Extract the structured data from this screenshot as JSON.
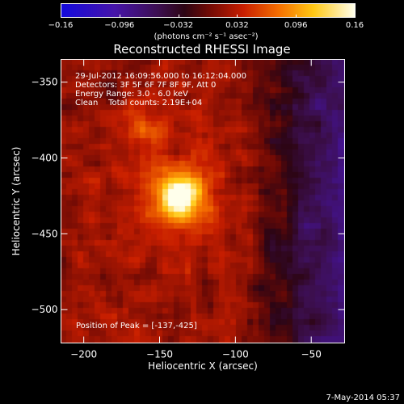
{
  "colorbar": {
    "ticks": [
      "−0.16",
      "−0.096",
      "−0.032",
      "0.032",
      "0.096",
      "0.16"
    ],
    "unit": "(photons cm⁻² s⁻¹ asec⁻²)",
    "range": [
      -0.16,
      0.16
    ]
  },
  "chart_data": {
    "type": "heatmap",
    "title": "Reconstructed RHESSI Image",
    "xlabel": "Heliocentric X (arcsec)",
    "ylabel": "Heliocentric Y (arcsec)",
    "xlim": [
      -215,
      -28
    ],
    "ylim": [
      -522,
      -335
    ],
    "xticks": [
      -200,
      -150,
      -100,
      -50
    ],
    "yticks": [
      -500,
      -450,
      -400,
      -350
    ],
    "xtick_labels": [
      "−200",
      "−150",
      "−100",
      "−50"
    ],
    "ytick_labels": [
      "−500",
      "−450",
      "−400",
      "−350"
    ],
    "peak": {
      "x": -137,
      "y": -425
    },
    "colormap": "IDL color table 3 (blue-purple-red-yellow-white)",
    "annotations": [
      "29-Jul-2012 16:09:56.000 to 16:12:04.000",
      "Detectors: 3F 5F 6F 7F 8F 9F, Att 0",
      "Energy Range: 3.0 - 6.0 keV",
      "Clean    Total counts: 2.19E+04"
    ],
    "peak_label": "Position of Peak = [-137,-425]"
  },
  "footer": {
    "date": "7-May-2014 05:37"
  }
}
